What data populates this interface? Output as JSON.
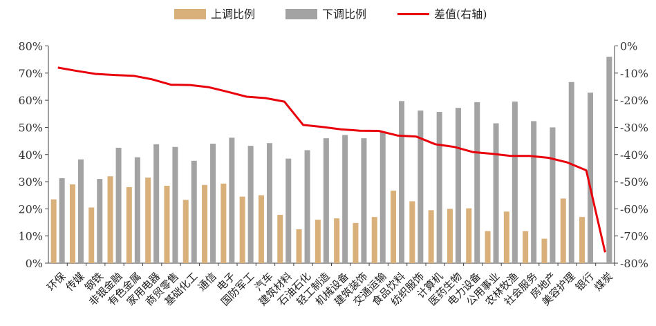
{
  "chart_data": {
    "type": "bar",
    "legend": {
      "position": "top",
      "up": "上调比例",
      "down": "下调比例",
      "diff": "差值(右轴)"
    },
    "colors": {
      "up": "#d9b07a",
      "down": "#a3a3a3",
      "diff": "#e8000b",
      "axis": "#404040"
    },
    "ylim_left": [
      0,
      80
    ],
    "ylim_right": [
      -80,
      0
    ],
    "left_ticks": [
      "0%",
      "10%",
      "20%",
      "30%",
      "40%",
      "50%",
      "60%",
      "70%",
      "80%"
    ],
    "right_ticks": [
      "-80%",
      "-70%",
      "-60%",
      "-50%",
      "-40%",
      "-30%",
      "-20%",
      "-10%",
      "0%"
    ],
    "categories": [
      "环保",
      "传媒",
      "钢铁",
      "非银金融",
      "有色金属",
      "家用电器",
      "商贸零售",
      "基础化工",
      "通信",
      "电子",
      "国防军工",
      "汽车",
      "建筑材料",
      "石油石化",
      "轻工制造",
      "机械设备",
      "建筑装饰",
      "交通运输",
      "食品饮料",
      "纺织服饰",
      "计算机",
      "医药生物",
      "电力设备",
      "公用事业",
      "农林牧渔",
      "社会服务",
      "房地产",
      "美容护理",
      "银行",
      "煤炭"
    ],
    "series": [
      {
        "name": "上调比例",
        "values": [
          23.5,
          29,
          20.5,
          32,
          28,
          31.5,
          28.5,
          23.3,
          28.8,
          29.3,
          24.5,
          25,
          17.8,
          12.5,
          16,
          16.5,
          14.8,
          17,
          26.7,
          22.8,
          19.5,
          20,
          20.2,
          11.8,
          19,
          11.8,
          9,
          23.8,
          17,
          0
        ]
      },
      {
        "name": "下调比例",
        "values": [
          31.3,
          38.2,
          31,
          42.5,
          39,
          43.8,
          42.8,
          37.7,
          44,
          46.2,
          43.2,
          44.2,
          38.5,
          41.6,
          46,
          47.2,
          46,
          48.3,
          59.7,
          56.2,
          55.7,
          57.2,
          59.3,
          51.5,
          59.5,
          52.3,
          50,
          66.7,
          62.8,
          76
        ]
      },
      {
        "name": "差值(右轴)",
        "values": [
          -8,
          -9.2,
          -10.3,
          -10.7,
          -11,
          -12.3,
          -14.3,
          -14.4,
          -15.2,
          -16.9,
          -18.7,
          -19.2,
          -20.5,
          -29.1,
          -29.8,
          -30.7,
          -31.2,
          -31.3,
          -33,
          -33.4,
          -36.2,
          -37.2,
          -39.1,
          -39.7,
          -40.5,
          -40.5,
          -41.2,
          -42.9,
          -45.8,
          -76
        ]
      }
    ]
  }
}
